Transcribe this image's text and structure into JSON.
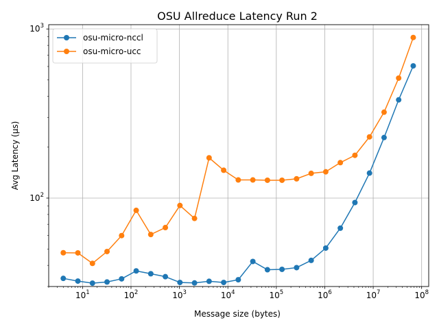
{
  "chart_data": {
    "type": "line",
    "title": "OSU Allreduce Latency Run 2",
    "xlabel": "Message size (bytes)",
    "ylabel": "Avg Latency (µs)",
    "xscale": "log",
    "yscale": "log",
    "xlim": [
      2,
      140000000
    ],
    "ylim": [
      30,
      1060
    ],
    "x_ticks": [
      {
        "value": 10,
        "base": "10",
        "exp": "1"
      },
      {
        "value": 100,
        "base": "10",
        "exp": "2"
      },
      {
        "value": 1000,
        "base": "10",
        "exp": "3"
      },
      {
        "value": 10000,
        "base": "10",
        "exp": "4"
      },
      {
        "value": 100000,
        "base": "10",
        "exp": "5"
      },
      {
        "value": 1000000,
        "base": "10",
        "exp": "6"
      },
      {
        "value": 10000000,
        "base": "10",
        "exp": "7"
      },
      {
        "value": 100000000,
        "base": "10",
        "exp": "8"
      }
    ],
    "y_ticks": [
      {
        "value": 100,
        "base": "10",
        "exp": "2"
      },
      {
        "value": 1000,
        "base": "10",
        "exp": "3"
      }
    ],
    "grid": true,
    "legend_position": "top-left",
    "x": [
      4,
      8,
      16,
      32,
      64,
      128,
      256,
      512,
      1024,
      2048,
      4096,
      8192,
      16384,
      32768,
      65536,
      131072,
      262144,
      524288,
      1048576,
      2097152,
      4194304,
      8388608,
      16777216,
      33554432,
      67108864
    ],
    "series": [
      {
        "name": "osu-micro-nccl",
        "color": "#1f77b4",
        "values": [
          33.5,
          32.3,
          31.4,
          31.9,
          33.3,
          37.1,
          35.7,
          34.3,
          31.7,
          31.5,
          32.2,
          31.7,
          32.9,
          42.2,
          37.7,
          37.9,
          38.8,
          42.8,
          50.6,
          66.4,
          94.1,
          140.5,
          228.0,
          381.0,
          605.0
        ]
      },
      {
        "name": "osu-micro-ucc",
        "color": "#ff7f0e",
        "values": [
          47.5,
          47.4,
          41.1,
          48.3,
          60.0,
          84.6,
          60.9,
          66.9,
          90.4,
          75.8,
          173.0,
          146.0,
          128.0,
          128.0,
          127.5,
          127.5,
          130.0,
          140.0,
          143.0,
          162.0,
          179.0,
          230.0,
          322.0,
          512.0,
          890.0
        ]
      }
    ]
  }
}
